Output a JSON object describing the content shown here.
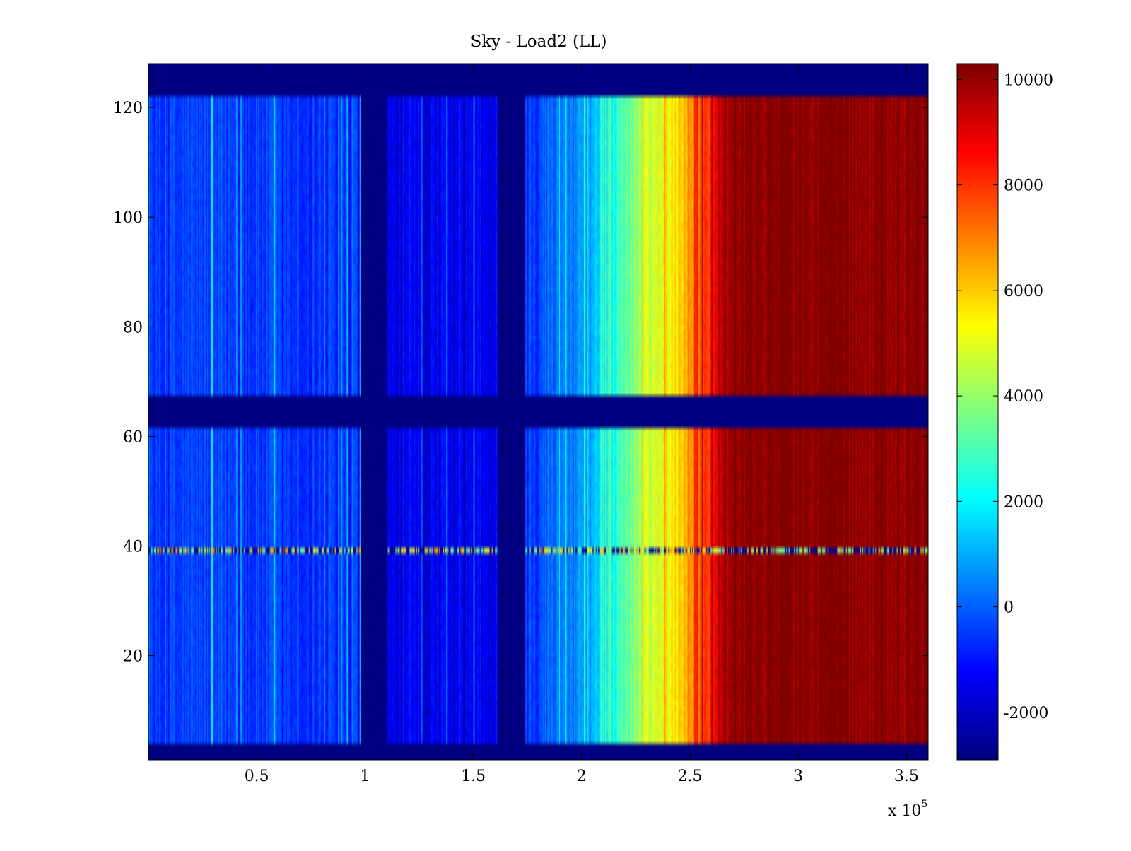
{
  "chart_data": {
    "type": "heatmap",
    "title": "Sky - Load2 (LL)",
    "xlabel": "",
    "ylabel": "",
    "x_multiplier_label": "x 10",
    "x_multiplier_exponent": "5",
    "x_scale": 100000,
    "xlim": [
      0,
      360000
    ],
    "ylim": [
      1,
      128
    ],
    "x_ticks": [
      0.5,
      1,
      1.5,
      2,
      2.5,
      3,
      3.5
    ],
    "x_tick_labels": [
      "0.5",
      "1",
      "1.5",
      "2",
      "2.5",
      "3",
      "3.5"
    ],
    "y_ticks": [
      20,
      40,
      60,
      80,
      100,
      120
    ],
    "y_tick_labels": [
      "20",
      "40",
      "60",
      "80",
      "100",
      "120"
    ],
    "colorbar": {
      "colormap": "jet",
      "clim": [
        -2900,
        10300
      ],
      "ticks": [
        -2000,
        0,
        2000,
        4000,
        6000,
        8000,
        10000
      ],
      "tick_labels": [
        "-2000",
        "0",
        "2000",
        "4000",
        "6000",
        "8000",
        "10000"
      ]
    },
    "masked_value": -2900,
    "masked_x_ranges": [
      [
        98000,
        110000
      ],
      [
        161000,
        174000
      ]
    ],
    "masked_y_ranges": [
      [
        1,
        4
      ],
      [
        62,
        67
      ],
      [
        122,
        128
      ]
    ],
    "value_profile_x": [
      0,
      20000,
      50000,
      85000,
      97000,
      111000,
      150000,
      160000,
      175000,
      190000,
      200000,
      215000,
      230000,
      245000,
      255000,
      262000,
      268000,
      275000,
      300000,
      330000,
      360000
    ],
    "value_profile_z": [
      -600,
      -500,
      -500,
      -700,
      -900,
      -1600,
      -1500,
      -1500,
      -400,
      200,
      700,
      2500,
      4500,
      6000,
      7500,
      9000,
      10000,
      10300,
      10300,
      10300,
      10300
    ],
    "anomaly_rows": [
      39
    ],
    "grid": false,
    "legend": "none"
  }
}
